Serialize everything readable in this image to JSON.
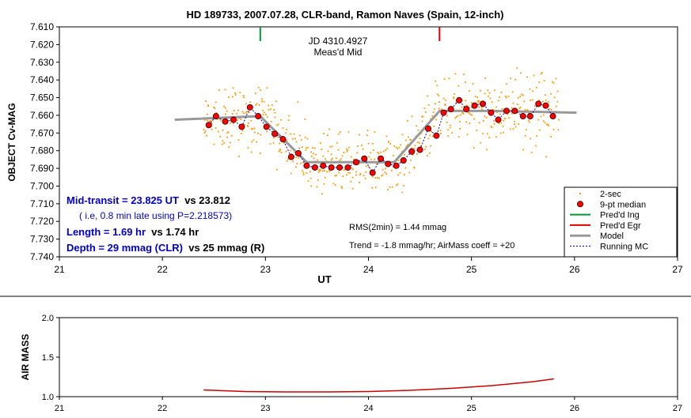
{
  "chart_data": [
    {
      "type": "scatter",
      "title": "HD 189733, 2007.07.28, CLR-band, Ramon Naves (Spain, 12-inch)",
      "xlabel": "UT",
      "ylabel": "OBJECT Cv-MAG",
      "xlim": [
        21,
        27
      ],
      "ylim": [
        7.74,
        7.61
      ],
      "y_inverted": true,
      "x_ticks": [
        "21",
        "22",
        "23",
        "24",
        "25",
        "26",
        "27"
      ],
      "y_ticks": [
        "7.610",
        "7.620",
        "7.630",
        "7.640",
        "7.650",
        "7.660",
        "7.670",
        "7.680",
        "7.690",
        "7.700",
        "7.710",
        "7.720",
        "7.730",
        "7.740"
      ],
      "grid": false,
      "legend_position": "bottom-right",
      "legend": [
        {
          "label": "2-sec",
          "color": "#ff9900",
          "marker": "dot"
        },
        {
          "label": "9-pt median",
          "color": "#ff0000",
          "marker": "circle"
        },
        {
          "label": "Pred'd Ing",
          "color": "#009933",
          "marker": "line"
        },
        {
          "label": "Pred'd Egr",
          "color": "#dd0000",
          "marker": "line"
        },
        {
          "label": "Model",
          "color": "#999999",
          "marker": "thick-line"
        },
        {
          "label": "Running MC",
          "color": "#0000cc",
          "marker": "dashed-line"
        }
      ],
      "markers": {
        "ingress_x": 22.95,
        "egress_x": 24.69,
        "ingress_color": "#009933",
        "egress_color": "#dd0000"
      },
      "center_label": [
        "JD 4310.4927",
        "Meas'd Mid"
      ],
      "annotations_blue": [
        {
          "bold": "Mid-transit = 23.825 UT",
          "rest": "  vs 23.812"
        },
        {
          "bold": "",
          "rest": "( i.e, 0.8 min late using P=2.218573)",
          "small": true
        },
        {
          "bold": "Length = 1.69 hr",
          "rest": "  vs 1.74 hr"
        },
        {
          "bold": "Depth = 29 mmag (CLR)",
          "rest": "  vs 25 mmag (R)"
        }
      ],
      "stats_text": [
        "RMS(2min) = 1.44 mmag",
        "Trend = -1.8 mmag/hr; AirMass coeff = +20"
      ],
      "model": {
        "x": [
          22.12,
          22.95,
          23.4,
          24.25,
          24.69,
          25.2,
          26.02
        ],
        "y": [
          7.6625,
          7.6605,
          7.6865,
          7.6865,
          7.6575,
          7.6575,
          7.6585
        ]
      },
      "median_9pt": {
        "x": [
          22.45,
          22.52,
          22.61,
          22.69,
          22.77,
          22.85,
          22.93,
          23.01,
          23.09,
          23.17,
          23.25,
          23.32,
          23.4,
          23.48,
          23.56,
          23.64,
          23.72,
          23.8,
          23.88,
          23.96,
          24.04,
          24.12,
          24.19,
          24.27,
          24.34,
          24.42,
          24.5,
          24.58,
          24.66,
          24.73,
          24.8,
          24.88,
          24.95,
          25.03,
          25.11,
          25.19,
          25.26,
          25.34,
          25.42,
          25.5,
          25.57,
          25.65,
          25.72,
          25.79
        ],
        "y": [
          7.6655,
          7.6605,
          7.6635,
          7.6625,
          7.6665,
          7.6555,
          7.6605,
          7.6665,
          7.6705,
          7.6735,
          7.6835,
          7.6815,
          7.6885,
          7.6895,
          7.6885,
          7.6895,
          7.6895,
          7.6895,
          7.6865,
          7.6845,
          7.6925,
          7.6845,
          7.6875,
          7.6885,
          7.6855,
          7.6805,
          7.6795,
          7.6675,
          7.6715,
          7.6585,
          7.6565,
          7.6515,
          7.6565,
          7.6545,
          7.6535,
          7.6585,
          7.6625,
          7.6575,
          7.6575,
          7.6605,
          7.6605,
          7.6535,
          7.6545,
          7.6605
        ]
      },
      "raw_2sec": {
        "count": 620,
        "scatter_mmag": 9.5
      }
    },
    {
      "type": "line",
      "ylabel": "AIR MASS",
      "xlim": [
        21,
        27
      ],
      "ylim": [
        1.0,
        2.0
      ],
      "x_ticks": [
        "21",
        "22",
        "23",
        "24",
        "25",
        "26",
        "27"
      ],
      "y_ticks": [
        "1.0",
        "1.5",
        "2.0"
      ],
      "series": [
        {
          "color": "#cc0000",
          "x": [
            22.4,
            22.8,
            23.2,
            23.6,
            24.0,
            24.4,
            24.8,
            25.2,
            25.6,
            25.8
          ],
          "y": [
            1.085,
            1.065,
            1.06,
            1.06,
            1.065,
            1.08,
            1.105,
            1.14,
            1.19,
            1.225
          ]
        }
      ]
    }
  ]
}
